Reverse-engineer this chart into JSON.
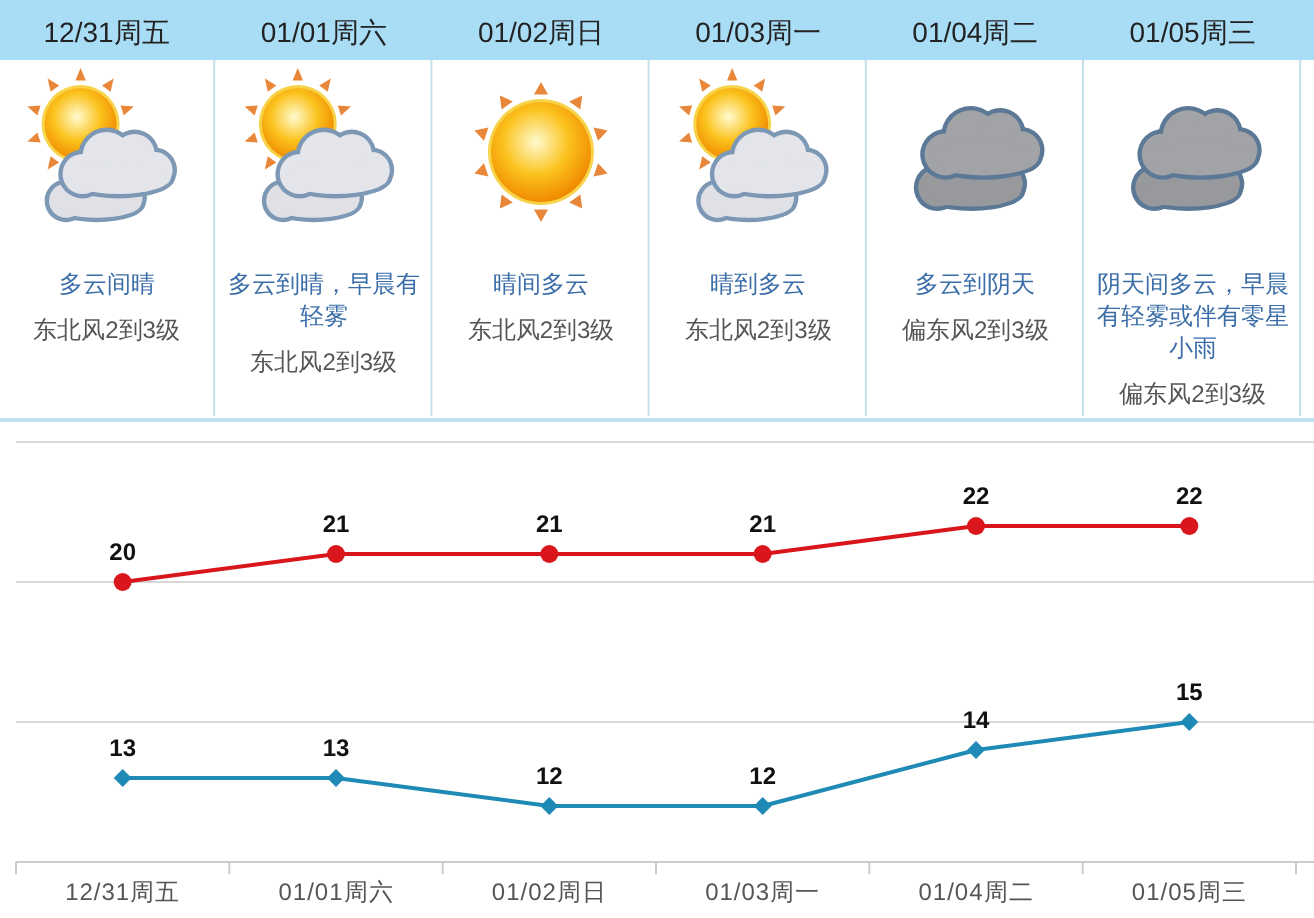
{
  "chart_data": {
    "type": "line",
    "categories": [
      "12/31周五",
      "01/01周六",
      "01/02周日",
      "01/03周一",
      "01/04周二",
      "01/05周三"
    ],
    "series": [
      {
        "color": "#d9161c",
        "marker": "circle",
        "values": [
          20,
          21,
          21,
          21,
          22,
          22
        ]
      },
      {
        "color": "#1f8ab5",
        "marker": "diamond",
        "values": [
          13,
          13,
          12,
          12,
          14,
          15
        ]
      }
    ],
    "ylim": [
      10,
      25
    ],
    "yticks": [
      {
        "value": 10,
        "label": null
      },
      {
        "value": 15,
        "label": null
      },
      {
        "value": 20,
        "label": null
      },
      {
        "value": 25,
        "label": null
      }
    ],
    "grid": "y",
    "tick_labels": "x",
    "data_labels": true,
    "annotations": [
      "多云间晴",
      "东北风2到3级",
      "多云到晴，早晨有轻雾",
      "东北风2到3级",
      "晴间多云",
      "东北风2到3级",
      "晴到多云",
      "东北风2到3级",
      "多云到阴天",
      "偏东风2到3级",
      "阴天间多云，早晨有轻雾或伴有零星小雨",
      "偏东风2到3级"
    ]
  }
}
